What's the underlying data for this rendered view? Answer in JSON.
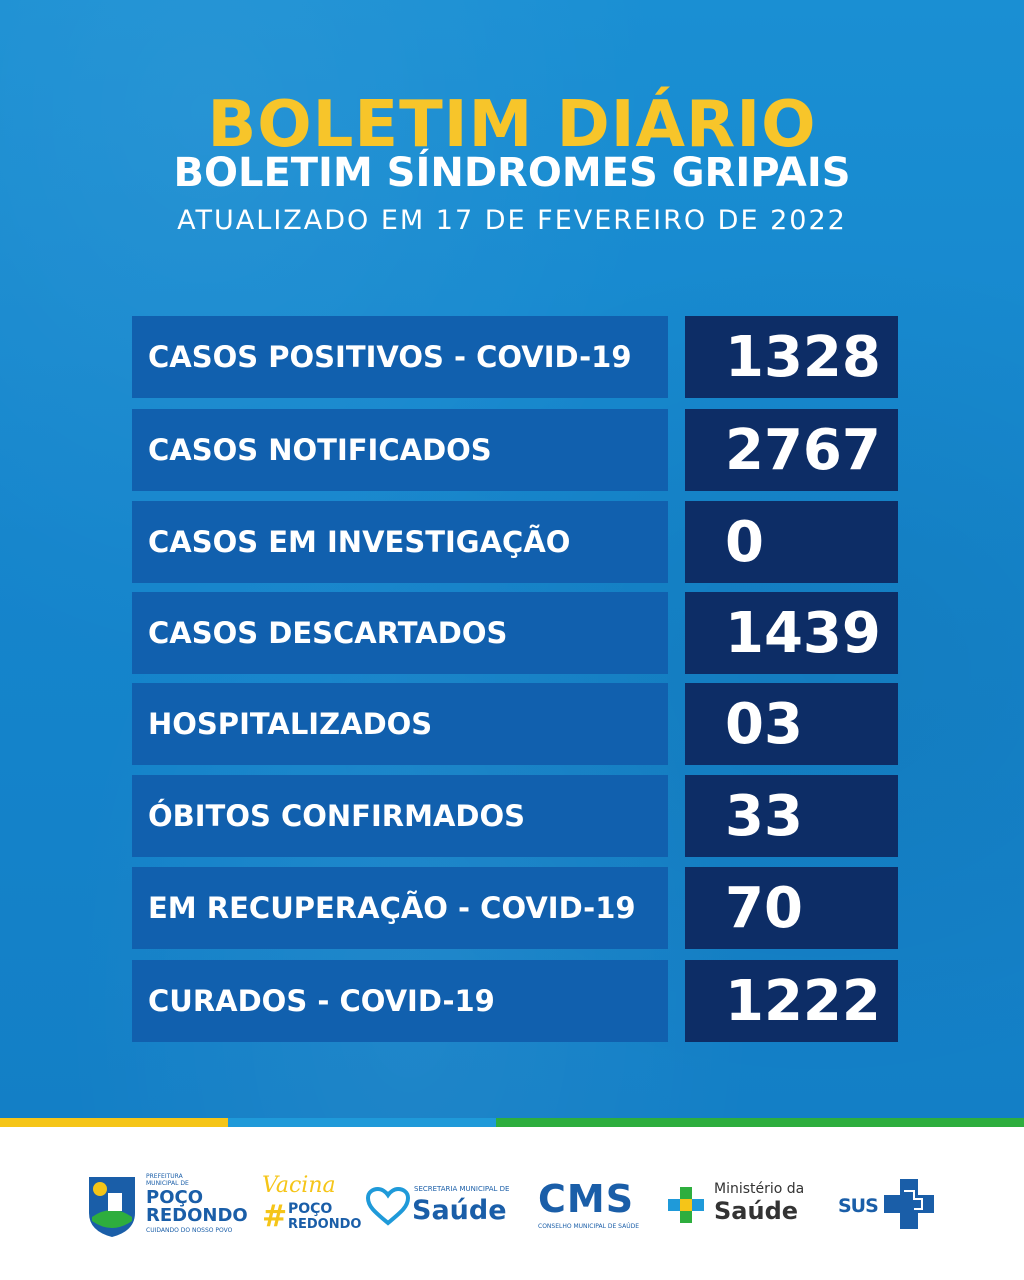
{
  "header": {
    "title": "BOLETIM DIÁRIO",
    "subtitle": "BOLETIM SÍNDROMES GRIPAIS",
    "updated": "ATUALIZADO EM 17 DE FEVEREIRO DE 2022"
  },
  "stats": [
    {
      "label": "CASOS POSITIVOS - COVID-19",
      "value": "1328"
    },
    {
      "label": "CASOS NOTIFICADOS",
      "value": "2767"
    },
    {
      "label": "CASOS EM INVESTIGAÇÃO",
      "value": "0"
    },
    {
      "label": "CASOS DESCARTADOS",
      "value": "1439"
    },
    {
      "label": "HOSPITALIZADOS",
      "value": "03"
    },
    {
      "label": "ÓBITOS CONFIRMADOS",
      "value": "33"
    },
    {
      "label": "EM RECUPERAÇÃO - COVID-19",
      "value": "70"
    },
    {
      "label": "CURADOS - COVID-19",
      "value": "1222"
    }
  ],
  "footer": {
    "prefeitura": {
      "top": "PREFEITURA",
      "mid": "MUNICIPAL DE",
      "name1": "POÇO",
      "name2": "REDONDO",
      "tagline": "CUIDANDO DO NOSSO POVO"
    },
    "vacina": {
      "script": "Vacina",
      "hash": "#",
      "name1": "POÇO",
      "name2": "REDONDO"
    },
    "secretaria": {
      "small": "SECRETARIA MUNICIPAL DE",
      "big": "Saúde"
    },
    "cms": {
      "big": "CMS",
      "small": "CONSELHO MUNICIPAL DE SAÚDE"
    },
    "ministerio": {
      "small": "Ministério da",
      "big": "Saúde"
    },
    "sus": {
      "text": "SUS"
    }
  },
  "colors": {
    "background": "#1585cc",
    "title": "#f7c52a",
    "label_bg": "#1160ae",
    "value_bg": "#0d2d66",
    "stripe_yellow": "#f5c518",
    "stripe_blue": "#1f9ad9",
    "stripe_green": "#2eae3e"
  }
}
